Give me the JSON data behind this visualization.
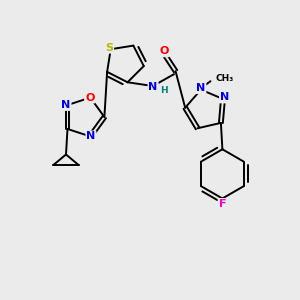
{
  "background_color": "#ebebeb",
  "bond_color": "#000000",
  "atom_colors": {
    "S": "#b8b800",
    "O": "#ff0000",
    "N": "#0000ee",
    "F": "#ff00cc",
    "H": "#008080",
    "C": "#000000"
  },
  "font_size_atoms": 8,
  "font_size_h": 6.5
}
